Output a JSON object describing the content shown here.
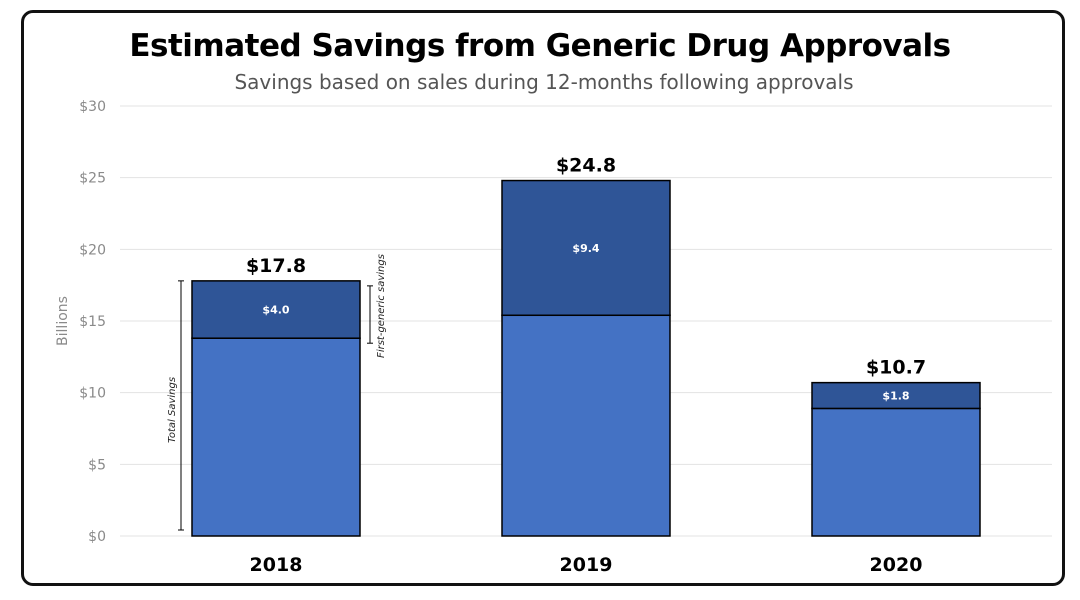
{
  "chart_data": {
    "type": "bar",
    "stacked": true,
    "title": "Estimated Savings from Generic Drug Approvals",
    "subtitle": "Savings based on sales during 12-months following approvals",
    "ylabel": "Billions",
    "xlabel": "",
    "ylim": [
      0,
      30
    ],
    "yticks": [
      0,
      5,
      10,
      15,
      20,
      25,
      30
    ],
    "ytick_labels": [
      "$0",
      "$5",
      "$10",
      "$15",
      "$20",
      "$25",
      "$30"
    ],
    "grid": true,
    "categories": [
      "2018",
      "2019",
      "2020"
    ],
    "series": [
      {
        "values": [
          13.8,
          15.4,
          8.9
        ],
        "color": "#4472C4"
      },
      {
        "values": [
          4.0,
          9.4,
          1.8
        ],
        "color": "#2F5597",
        "labels": [
          "$4.0",
          "$9.4",
          "$1.8"
        ]
      }
    ],
    "totals": [
      17.8,
      24.8,
      10.7
    ],
    "total_labels": [
      "$17.8",
      "$24.8",
      "$10.7"
    ],
    "annotations": {
      "total_savings": "Total Savings",
      "first_generic_savings": "First-generic savings"
    }
  }
}
